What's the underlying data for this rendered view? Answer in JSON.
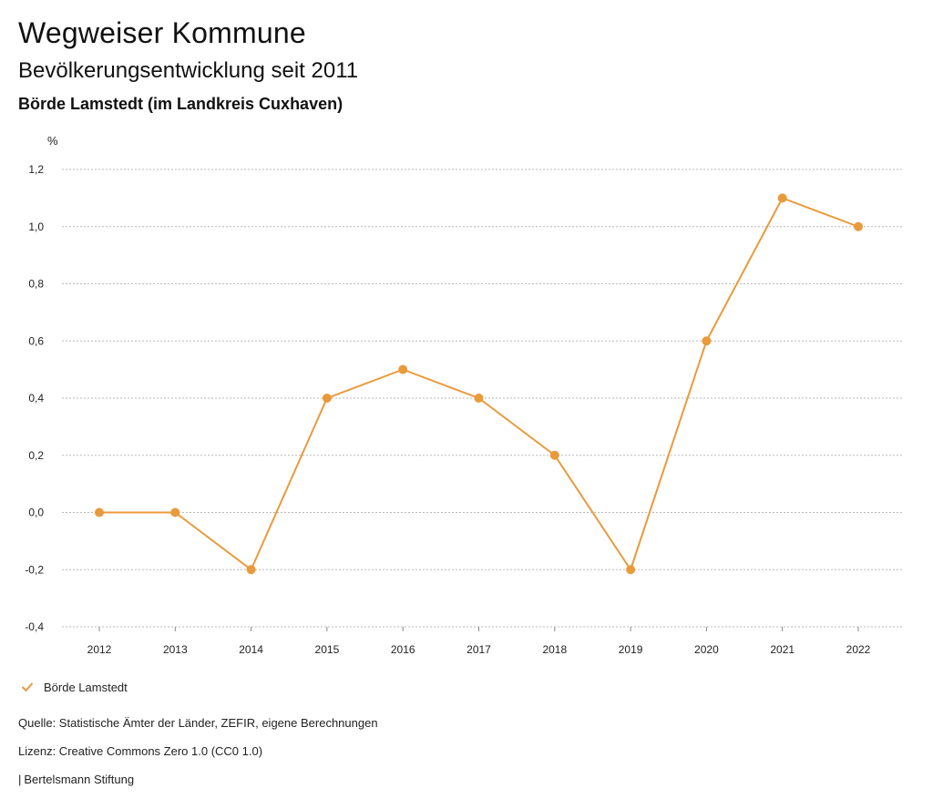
{
  "header": {
    "title": "Wegweiser Kommune",
    "subtitle": "Bevölkerungsentwicklung seit 2011",
    "region": "Börde Lamstedt (im Landkreis Cuxhaven)"
  },
  "chart_data": {
    "type": "line",
    "title": "Bevölkerungsentwicklung seit 2011",
    "xlabel": "",
    "ylabel": "%",
    "ylim": [
      -0.4,
      1.2
    ],
    "y_ticks": [
      1.2,
      1.0,
      0.8,
      0.6,
      0.4,
      0.2,
      0.0,
      -0.2,
      -0.4
    ],
    "y_tick_labels": [
      "1,2",
      "1,0",
      "0,8",
      "0,6",
      "0,4",
      "0,2",
      "0,0",
      "-0,2",
      "-0,4"
    ],
    "categories": [
      "2012",
      "2013",
      "2014",
      "2015",
      "2016",
      "2017",
      "2018",
      "2019",
      "2020",
      "2021",
      "2022"
    ],
    "series": [
      {
        "name": "Börde Lamstedt",
        "values": [
          0.0,
          0.0,
          -0.2,
          0.4,
          0.5,
          0.4,
          0.2,
          -0.2,
          0.6,
          1.1,
          1.0
        ],
        "color": "#ea9a3a"
      }
    ],
    "grid": true,
    "legend_position": "bottom-left"
  },
  "legend": {
    "items": [
      {
        "label": "Börde Lamstedt",
        "color": "#ea9a3a",
        "icon": "check-icon"
      }
    ]
  },
  "footer": {
    "source": "Quelle: Statistische Ämter der Länder, ZEFIR, eigene Berechnungen",
    "license": "Lizenz: Creative Commons Zero 1.0 (CC0 1.0)",
    "brand_prefix": "|",
    "brand": "Bertelsmann Stiftung"
  },
  "colors": {
    "accent": "#ea9a3a",
    "grid": "#b9b9b9",
    "text": "#111111"
  }
}
